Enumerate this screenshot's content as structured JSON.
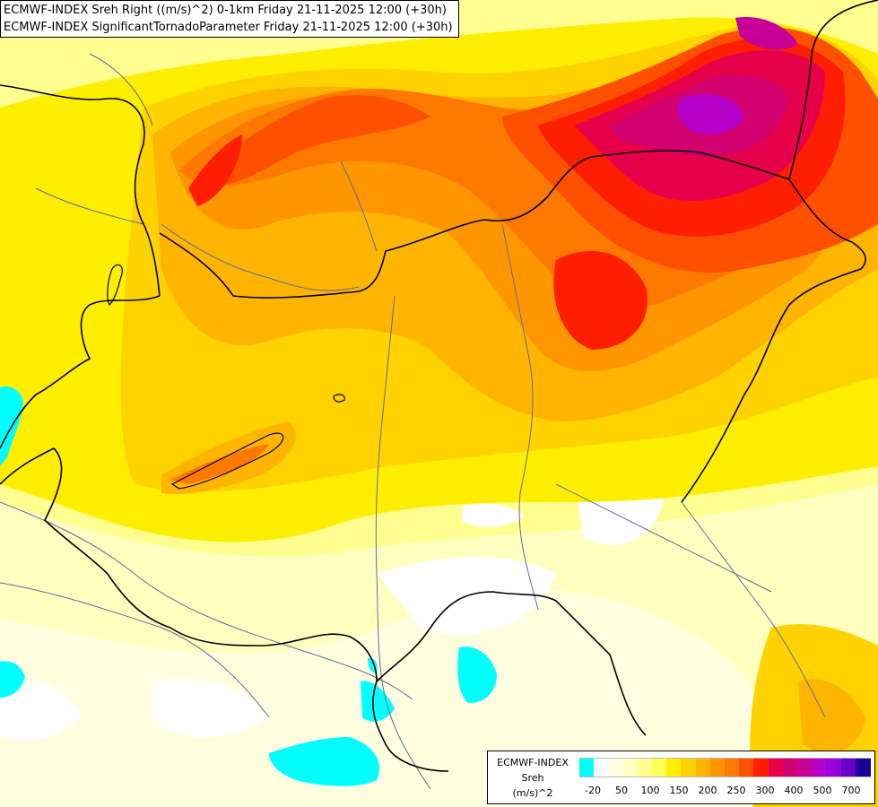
{
  "title": {
    "line1": "ECMWF-INDEX Sreh Right ((m/s)^2) 0-1km Friday 21-11-2025 12:00 (+30h)",
    "line2": "ECMWF-INDEX SignificantTornadoParameter Friday 21-11-2025 12:00 (+30h)"
  },
  "legend": {
    "model": "ECMWF-INDEX",
    "variable": "Sreh",
    "unit": "(m/s)^2",
    "colors": [
      "#00ffff",
      "#ffffff",
      "#ffffe0",
      "#ffffbf",
      "#ffff90",
      "#ffff55",
      "#ffee00",
      "#ffd200",
      "#ffb400",
      "#ff9600",
      "#ff7800",
      "#ff5000",
      "#ff1e00",
      "#e6004b",
      "#d2006e",
      "#c80096",
      "#b400c8",
      "#9600dc",
      "#6400c8",
      "#1e0096"
    ],
    "ticks": [
      "-20",
      "50",
      "100",
      "150",
      "200",
      "250",
      "300",
      "400",
      "500",
      "700"
    ]
  }
}
